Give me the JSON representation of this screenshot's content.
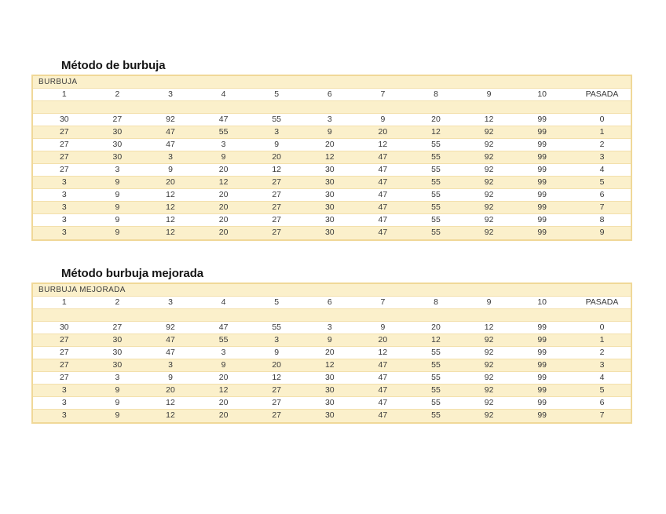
{
  "colors": {
    "band_fill": "#fbf0cb",
    "row_white": "#ffffff",
    "table_border": "#f0d898",
    "row_separator": "#f3e0ac",
    "text": "#3a3a3a",
    "title_text": "#151515"
  },
  "tables": [
    {
      "title": "Método de burbuja",
      "header": "BURBUJA",
      "columns": [
        "1",
        "2",
        "3",
        "4",
        "5",
        "6",
        "7",
        "8",
        "9",
        "10",
        "PASADA"
      ],
      "rows": [
        [
          "30",
          "27",
          "92",
          "47",
          "55",
          "3",
          "9",
          "20",
          "12",
          "99",
          "0"
        ],
        [
          "27",
          "30",
          "47",
          "55",
          "3",
          "9",
          "20",
          "12",
          "92",
          "99",
          "1"
        ],
        [
          "27",
          "30",
          "47",
          "3",
          "9",
          "20",
          "12",
          "55",
          "92",
          "99",
          "2"
        ],
        [
          "27",
          "30",
          "3",
          "9",
          "20",
          "12",
          "47",
          "55",
          "92",
          "99",
          "3"
        ],
        [
          "27",
          "3",
          "9",
          "20",
          "12",
          "30",
          "47",
          "55",
          "92",
          "99",
          "4"
        ],
        [
          "3",
          "9",
          "20",
          "12",
          "27",
          "30",
          "47",
          "55",
          "92",
          "99",
          "5"
        ],
        [
          "3",
          "9",
          "12",
          "20",
          "27",
          "30",
          "47",
          "55",
          "92",
          "99",
          "6"
        ],
        [
          "3",
          "9",
          "12",
          "20",
          "27",
          "30",
          "47",
          "55",
          "92",
          "99",
          "7"
        ],
        [
          "3",
          "9",
          "12",
          "20",
          "27",
          "30",
          "47",
          "55",
          "92",
          "99",
          "8"
        ],
        [
          "3",
          "9",
          "12",
          "20",
          "27",
          "30",
          "47",
          "55",
          "92",
          "99",
          "9"
        ]
      ]
    },
    {
      "title": "Método burbuja mejorada",
      "header": "BURBUJA MEJORADA",
      "columns": [
        "1",
        "2",
        "3",
        "4",
        "5",
        "6",
        "7",
        "8",
        "9",
        "10",
        "PASADA"
      ],
      "rows": [
        [
          "30",
          "27",
          "92",
          "47",
          "55",
          "3",
          "9",
          "20",
          "12",
          "99",
          "0"
        ],
        [
          "27",
          "30",
          "47",
          "55",
          "3",
          "9",
          "20",
          "12",
          "92",
          "99",
          "1"
        ],
        [
          "27",
          "30",
          "47",
          "3",
          "9",
          "20",
          "12",
          "55",
          "92",
          "99",
          "2"
        ],
        [
          "27",
          "30",
          "3",
          "9",
          "20",
          "12",
          "47",
          "55",
          "92",
          "99",
          "3"
        ],
        [
          "27",
          "3",
          "9",
          "20",
          "12",
          "30",
          "47",
          "55",
          "92",
          "99",
          "4"
        ],
        [
          "3",
          "9",
          "20",
          "12",
          "27",
          "30",
          "47",
          "55",
          "92",
          "99",
          "5"
        ],
        [
          "3",
          "9",
          "12",
          "20",
          "27",
          "30",
          "47",
          "55",
          "92",
          "99",
          "6"
        ],
        [
          "3",
          "9",
          "12",
          "20",
          "27",
          "30",
          "47",
          "55",
          "92",
          "99",
          "7"
        ]
      ]
    }
  ]
}
